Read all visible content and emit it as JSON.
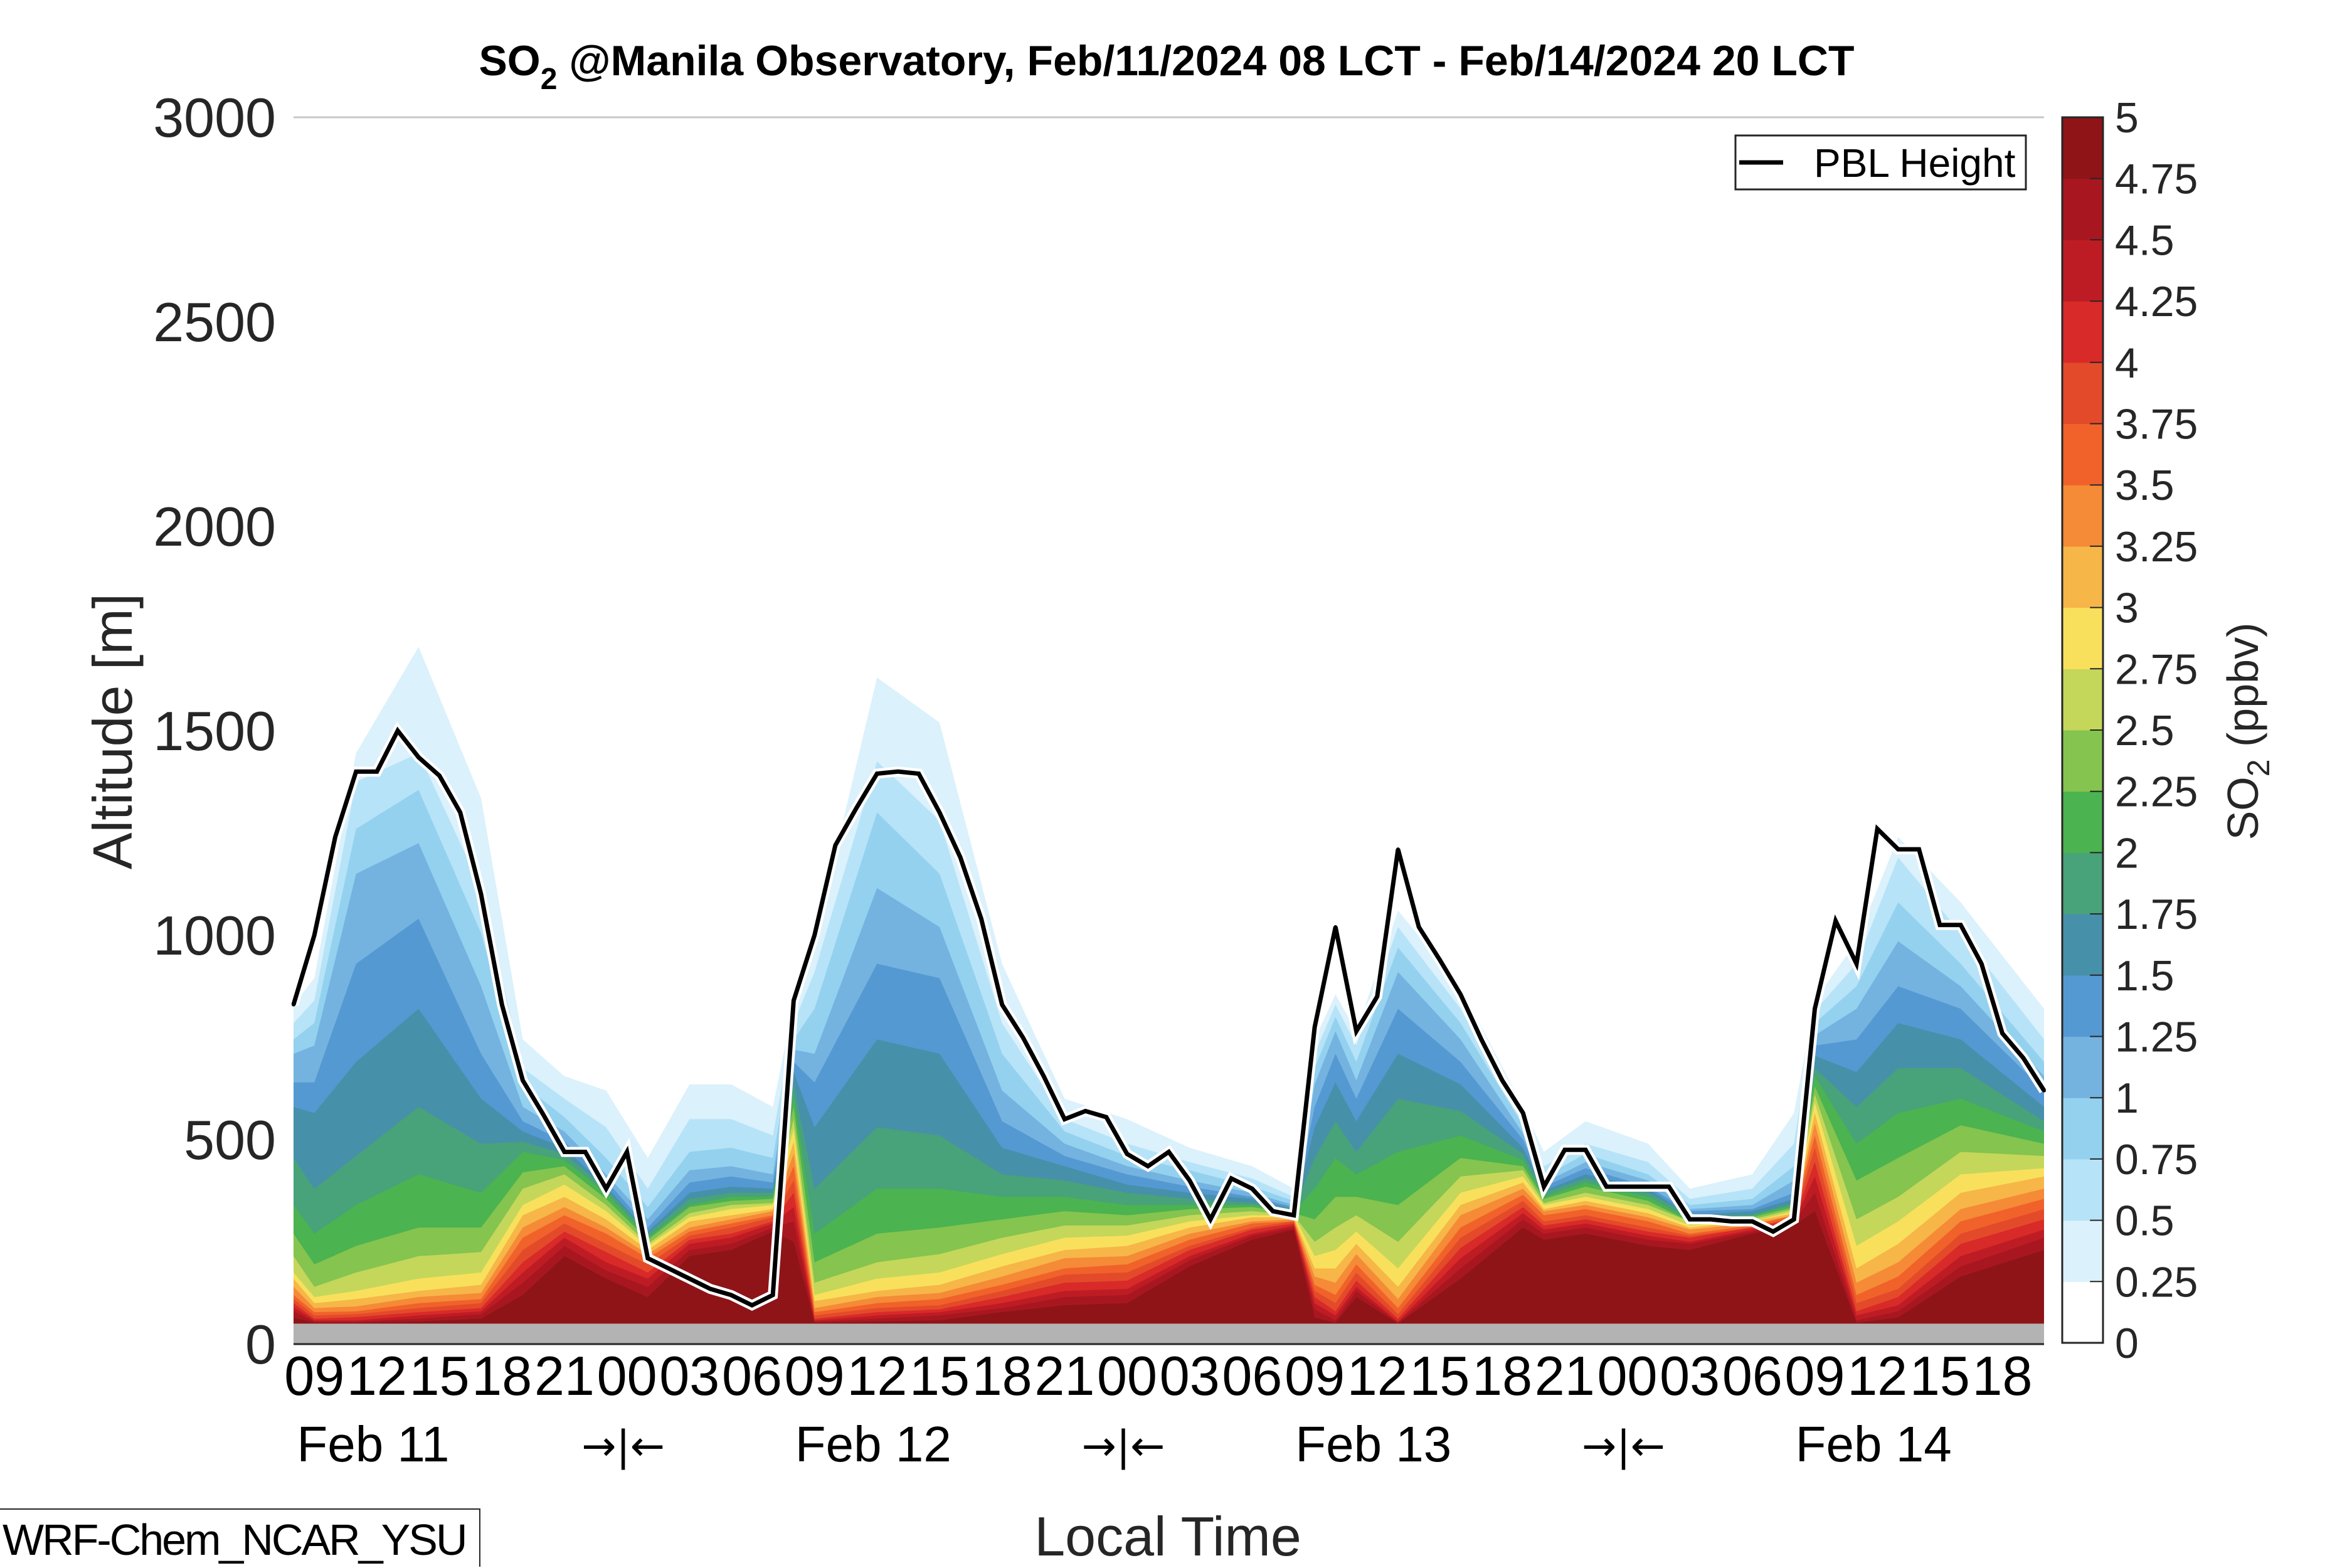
{
  "chart_data": {
    "type": "heatmap",
    "subtype": "filled-contour time-height cross section",
    "title": {
      "prefix": "SO",
      "subscript": "2",
      "rest": " @Manila Observatory, Feb/11/2024 08 LCT - Feb/14/2024 20 LCT"
    },
    "xlabel": "Local Time",
    "ylabel": "Altitude [m]",
    "ylim": [
      0,
      3000
    ],
    "yticks": [
      "0",
      "500",
      "1000",
      "1500",
      "2000",
      "2500",
      "3000"
    ],
    "ytick_values": [
      0,
      500,
      1000,
      1500,
      2000,
      2500,
      3000
    ],
    "x_start": "Feb/11/2024 08 LCT",
    "x_hours": 84,
    "xtick_labels": [
      "09",
      "12",
      "15",
      "18",
      "21",
      "00",
      "03",
      "06",
      "09",
      "12",
      "15",
      "18",
      "21",
      "00",
      "03",
      "06",
      "09",
      "12",
      "15",
      "18",
      "21",
      "00",
      "03",
      "06",
      "09",
      "12",
      "15",
      "18"
    ],
    "xtick_hours": [
      1,
      4,
      7,
      10,
      13,
      16,
      19,
      22,
      25,
      28,
      31,
      34,
      37,
      40,
      43,
      46,
      49,
      52,
      55,
      58,
      61,
      64,
      67,
      70,
      73,
      76,
      79,
      82
    ],
    "day_labels": [
      {
        "label": "Feb 11",
        "hour": 4
      },
      {
        "label": "Feb 12",
        "hour": 28
      },
      {
        "label": "Feb 13",
        "hour": 52
      },
      {
        "label": "Feb 14",
        "hour": 76
      }
    ],
    "day_separators": [
      {
        "label": "→|←",
        "hour": 16
      },
      {
        "label": "→|←",
        "hour": 40
      },
      {
        "label": "→|←",
        "hour": 64
      }
    ],
    "colorbar": {
      "label_prefix": "SO",
      "label_subscript": "2",
      "label_rest": " (ppbv)",
      "levels": [
        0,
        0.25,
        0.5,
        0.75,
        1,
        1.25,
        1.5,
        1.75,
        2,
        2.25,
        2.5,
        2.75,
        3,
        3.25,
        3.5,
        3.75,
        4,
        4.25,
        4.5,
        4.75,
        5
      ],
      "tick_labels": [
        "0",
        "0.25",
        "0.5",
        "0.75",
        "1",
        "1.25",
        "1.5",
        "1.75",
        "2",
        "2.25",
        "2.5",
        "2.75",
        "3",
        "3.25",
        "3.5",
        "3.75",
        "4",
        "4.25",
        "4.5",
        "4.75",
        "5"
      ],
      "colors": [
        "#ffffff",
        "#dbf1fb",
        "#b6e3f7",
        "#93d1ef",
        "#74b3e0",
        "#5599d2",
        "#4790aa",
        "#48a27a",
        "#4bb350",
        "#84c44f",
        "#c4d75a",
        "#f9e05c",
        "#f7b648",
        "#f58a37",
        "#f0622a",
        "#e34a2a",
        "#d82a28",
        "#be1c24",
        "#a8171f",
        "#8e1418"
      ]
    },
    "terrain": {
      "top_m": 50,
      "color": "#b3b3b3"
    },
    "legend": {
      "entries": [
        "PBL Height"
      ],
      "placement": "top-right"
    },
    "pbl_height": {
      "name": "PBL Height",
      "unit": "m",
      "values": [
        830,
        1000,
        1240,
        1400,
        1400,
        1500,
        1435,
        1390,
        1300,
        1100,
        830,
        645,
        560,
        470,
        470,
        380,
        470,
        210,
        185,
        160,
        135,
        120,
        95,
        120,
        840,
        1000,
        1220,
        1310,
        1395,
        1400,
        1395,
        1300,
        1190,
        1040,
        830,
        750,
        655,
        550,
        570,
        555,
        465,
        435,
        470,
        400,
        305,
        405,
        380,
        325,
        315,
        775,
        1020,
        765,
        850,
        1210,
        1020,
        940,
        855,
        745,
        645,
        565,
        385,
        475,
        475,
        385,
        385,
        385,
        385,
        305,
        305,
        300,
        300,
        275,
        305,
        820,
        1035,
        930,
        1260,
        1210,
        1210,
        1025,
        1025,
        930,
        760,
        700,
        620
      ]
    },
    "contour_thresholds": [
      0.25,
      0.5,
      0.75,
      1,
      1.25,
      1.5,
      1.75,
      2,
      2.25,
      2.5,
      2.75,
      3,
      3.25,
      3.5,
      3.75,
      4,
      4.25,
      4.5,
      4.75
    ],
    "contour_profiles": [
      {
        "hour": 0,
        "tops_m": [
          830,
          785,
          745,
          710,
          640,
          580,
          455,
          340,
          270,
          215,
          175,
          160,
          140,
          120,
          110,
          100,
          90,
          80,
          65
        ]
      },
      {
        "hour": 1,
        "tops_m": [
          895,
          840,
          785,
          730,
          640,
          565,
          380,
          270,
          195,
          140,
          115,
          100,
          88,
          78,
          70,
          62,
          58,
          55,
          52
        ]
      },
      {
        "hour": 3,
        "tops_m": [
          1445,
          1375,
          1260,
          1150,
          930,
          690,
          460,
          340,
          240,
          175,
          130,
          110,
          92,
          80,
          73,
          66,
          58,
          55,
          52
        ]
      },
      {
        "hour": 6,
        "tops_m": [
          1705,
          1445,
          1355,
          1225,
          1040,
          820,
          580,
          415,
          285,
          215,
          160,
          130,
          115,
          100,
          88,
          78,
          70,
          62,
          55
        ]
      },
      {
        "hour": 9,
        "tops_m": [
          1335,
          1115,
          1005,
          875,
          710,
          600,
          490,
          370,
          285,
          225,
          175,
          145,
          125,
          110,
          100,
          88,
          80,
          73,
          62
        ]
      },
      {
        "hour": 11,
        "tops_m": [
          745,
          675,
          635,
          580,
          545,
          520,
          495,
          470,
          420,
          380,
          340,
          315,
          285,
          260,
          230,
          200,
          175,
          150,
          120
        ]
      },
      {
        "hour": 13,
        "tops_m": [
          655,
          600,
          555,
          520,
          495,
          480,
          465,
          450,
          435,
          415,
          390,
          360,
          335,
          315,
          295,
          275,
          260,
          240,
          215
        ]
      },
      {
        "hour": 15,
        "tops_m": [
          620,
          530,
          455,
          415,
          400,
          385,
          380,
          370,
          355,
          340,
          325,
          305,
          285,
          270,
          245,
          225,
          200,
          180,
          160
        ]
      },
      {
        "hour": 17,
        "tops_m": [
          455,
          380,
          335,
          305,
          285,
          275,
          270,
          260,
          255,
          245,
          240,
          230,
          220,
          210,
          195,
          175,
          160,
          140,
          115
        ]
      },
      {
        "hour": 19,
        "tops_m": [
          635,
          550,
          470,
          425,
          395,
          370,
          355,
          340,
          335,
          320,
          310,
          300,
          285,
          275,
          265,
          255,
          245,
          230,
          215
        ]
      },
      {
        "hour": 21,
        "tops_m": [
          635,
          550,
          480,
          435,
          410,
          385,
          370,
          360,
          350,
          340,
          330,
          315,
          305,
          295,
          285,
          270,
          260,
          245,
          230
        ]
      },
      {
        "hour": 23,
        "tops_m": [
          580,
          510,
          455,
          415,
          395,
          380,
          370,
          360,
          355,
          345,
          340,
          330,
          325,
          315,
          310,
          300,
          295,
          285,
          275
        ]
      },
      {
        "hour": 24,
        "tops_m": [
          830,
          785,
          745,
          720,
          690,
          665,
          635,
          605,
          580,
          550,
          525,
          495,
          465,
          435,
          400,
          370,
          335,
          300,
          250
        ]
      },
      {
        "hour": 25,
        "tops_m": [
          985,
          910,
          820,
          710,
          640,
          530,
          380,
          270,
          200,
          150,
          120,
          105,
          88,
          78,
          70,
          62,
          58,
          55,
          52
        ]
      },
      {
        "hour": 28,
        "tops_m": [
          1630,
          1425,
          1300,
          1115,
          930,
          745,
          530,
          380,
          270,
          200,
          160,
          130,
          115,
          100,
          88,
          78,
          70,
          62,
          55
        ]
      },
      {
        "hour": 31,
        "tops_m": [
          1520,
          1280,
          1150,
          1020,
          895,
          710,
          510,
          380,
          285,
          220,
          175,
          145,
          125,
          110,
          95,
          85,
          78,
          70,
          58
        ]
      },
      {
        "hour": 34,
        "tops_m": [
          930,
          785,
          710,
          620,
          545,
          480,
          415,
          360,
          305,
          260,
          220,
          190,
          165,
          145,
          130,
          115,
          100,
          88,
          78
        ]
      },
      {
        "hour": 37,
        "tops_m": [
          600,
          550,
          520,
          490,
          460,
          435,
          400,
          360,
          325,
          290,
          260,
          230,
          210,
          185,
          170,
          150,
          130,
          115,
          95
        ]
      },
      {
        "hour": 40,
        "tops_m": [
          550,
          490,
          460,
          435,
          415,
          390,
          370,
          340,
          315,
          290,
          265,
          240,
          215,
          195,
          175,
          155,
          135,
          120,
          100
        ]
      },
      {
        "hour": 43,
        "tops_m": [
          480,
          445,
          425,
          400,
          385,
          370,
          355,
          340,
          330,
          315,
          300,
          285,
          270,
          255,
          240,
          230,
          215,
          205,
          190
        ]
      },
      {
        "hour": 46,
        "tops_m": [
          435,
          405,
          385,
          370,
          360,
          355,
          345,
          340,
          335,
          325,
          315,
          310,
          300,
          295,
          285,
          280,
          270,
          265,
          255
        ]
      },
      {
        "hour": 48,
        "tops_m": [
          380,
          360,
          350,
          340,
          335,
          330,
          330,
          325,
          320,
          315,
          315,
          310,
          305,
          300,
          300,
          295,
          290,
          285,
          280
        ]
      },
      {
        "hour": 49,
        "tops_m": [
          745,
          710,
          675,
          635,
          580,
          530,
          455,
          380,
          305,
          250,
          215,
          185,
          165,
          145,
          130,
          115,
          100,
          85,
          65
        ]
      },
      {
        "hour": 50,
        "tops_m": [
          855,
          830,
          800,
          765,
          710,
          640,
          545,
          455,
          360,
          285,
          230,
          185,
          150,
          120,
          100,
          80,
          70,
          58,
          52
        ]
      },
      {
        "hour": 51,
        "tops_m": [
          765,
          730,
          690,
          645,
          600,
          545,
          470,
          415,
          360,
          315,
          275,
          245,
          220,
          195,
          175,
          155,
          140,
          130,
          115
        ]
      },
      {
        "hour": 53,
        "tops_m": [
          1060,
          1020,
          970,
          910,
          820,
          710,
          600,
          470,
          340,
          250,
          185,
          140,
          110,
          88,
          73,
          62,
          55,
          52,
          50
        ]
      },
      {
        "hour": 56,
        "tops_m": [
          875,
          820,
          785,
          745,
          690,
          635,
          570,
          510,
          455,
          410,
          370,
          340,
          315,
          285,
          260,
          235,
          210,
          185,
          160
        ]
      },
      {
        "hour": 59,
        "tops_m": [
          580,
          550,
          535,
          515,
          500,
          480,
          465,
          450,
          435,
          425,
          410,
          395,
          380,
          365,
          350,
          335,
          320,
          305,
          285
        ]
      },
      {
        "hour": 60,
        "tops_m": [
          470,
          435,
          410,
          395,
          385,
          375,
          370,
          360,
          355,
          345,
          340,
          330,
          325,
          315,
          300,
          290,
          280,
          270,
          255
        ]
      },
      {
        "hour": 62,
        "tops_m": [
          545,
          490,
          465,
          445,
          430,
          415,
          405,
          395,
          385,
          370,
          360,
          350,
          340,
          330,
          315,
          305,
          295,
          285,
          270
        ]
      },
      {
        "hour": 65,
        "tops_m": [
          490,
          445,
          415,
          400,
          385,
          380,
          370,
          360,
          350,
          340,
          330,
          320,
          310,
          300,
          285,
          275,
          265,
          255,
          240
        ]
      },
      {
        "hour": 67,
        "tops_m": [
          380,
          355,
          340,
          330,
          325,
          315,
          315,
          305,
          300,
          300,
          290,
          285,
          280,
          270,
          265,
          260,
          250,
          245,
          230
        ]
      },
      {
        "hour": 70,
        "tops_m": [
          415,
          380,
          355,
          340,
          330,
          325,
          315,
          315,
          310,
          305,
          300,
          300,
          295,
          290,
          285,
          285,
          280,
          275,
          270
        ]
      },
      {
        "hour": 72,
        "tops_m": [
          565,
          490,
          435,
          400,
          370,
          355,
          345,
          340,
          335,
          330,
          325,
          320,
          315,
          315,
          310,
          305,
          300,
          300,
          290
        ]
      },
      {
        "hour": 73,
        "tops_m": [
          840,
          815,
          785,
          755,
          730,
          705,
          675,
          655,
          630,
          610,
          590,
          565,
          540,
          510,
          480,
          445,
          410,
          370,
          325
        ]
      },
      {
        "hour": 75,
        "tops_m": [
          985,
          930,
          875,
          820,
          745,
          665,
          580,
          490,
          400,
          305,
          240,
          185,
          150,
          120,
          100,
          80,
          70,
          58,
          52
        ]
      },
      {
        "hour": 77,
        "tops_m": [
          1240,
          1190,
          1080,
          985,
          875,
          785,
          675,
          565,
          455,
          360,
          300,
          245,
          200,
          165,
          135,
          115,
          95,
          80,
          65
        ]
      },
      {
        "hour": 80,
        "tops_m": [
          1080,
          1005,
          930,
          875,
          820,
          745,
          675,
          600,
          535,
          470,
          415,
          370,
          330,
          300,
          270,
          245,
          215,
          190,
          165
        ]
      },
      {
        "hour": 84,
        "tops_m": [
          820,
          745,
          690,
          655,
          620,
          580,
          545,
          520,
          490,
          460,
          430,
          410,
          380,
          355,
          330,
          305,
          280,
          260,
          230
        ]
      }
    ]
  },
  "model_label": "WRF-Chem_NCAR_YSU",
  "colors": {
    "text": "#262626",
    "pbl_line": "#000000",
    "pbl_halo": "#ffffff",
    "gridline": "#c8c8c8",
    "terrain": "#b3b3b3"
  }
}
